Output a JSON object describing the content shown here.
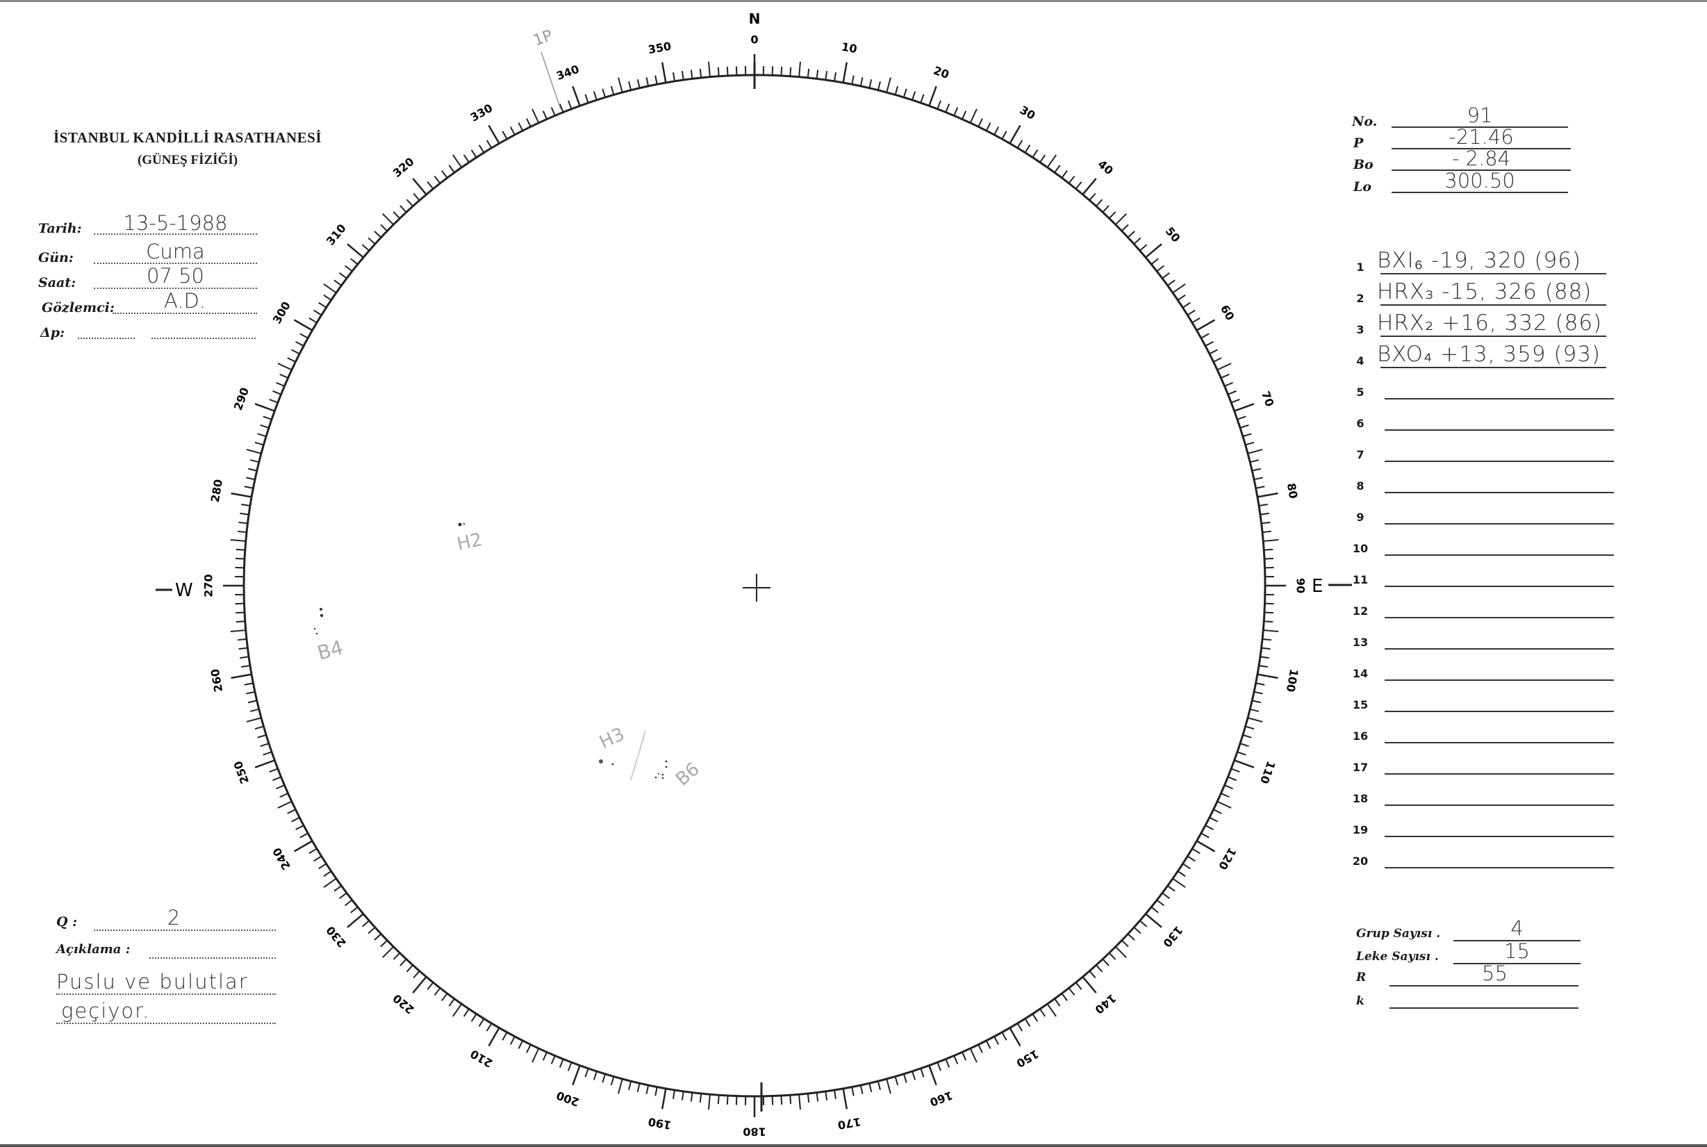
{
  "header": {
    "institution": "İSTANBUL KANDİLLİ RASATHANESİ",
    "department": "(GÜNEŞ FİZİĞİ)"
  },
  "observation": {
    "date_label": "Tarih:",
    "date_value": "13-5-1988",
    "day_label": "Gün:",
    "day_value": "Cuma",
    "time_label": "Saat:",
    "time_value": "07 50",
    "observer_label": "Gözlemci:",
    "observer_value": "A.D.",
    "dp_label": "Δp:",
    "dp_value": ""
  },
  "ephemeris": {
    "no_label": "No.",
    "no_value": "91",
    "p_label": "P",
    "p_value": "-21.46",
    "bo_label": "Bo",
    "bo_value": "- 2.84",
    "lo_label": "Lo",
    "lo_value": "300.50"
  },
  "groups": [
    {
      "n": "1",
      "text": "BXI₆ -19, 320 (96)"
    },
    {
      "n": "2",
      "text": "HRX₃ -15, 326 (88)"
    },
    {
      "n": "3",
      "text": "HRX₂ +16, 332 (86)"
    },
    {
      "n": "4",
      "text": "BXO₄ +13, 359 (93)"
    },
    {
      "n": "5",
      "text": ""
    },
    {
      "n": "6",
      "text": ""
    },
    {
      "n": "7",
      "text": ""
    },
    {
      "n": "8",
      "text": ""
    },
    {
      "n": "9",
      "text": ""
    },
    {
      "n": "10",
      "text": ""
    },
    {
      "n": "11",
      "text": ""
    },
    {
      "n": "12",
      "text": ""
    },
    {
      "n": "13",
      "text": ""
    },
    {
      "n": "14",
      "text": ""
    },
    {
      "n": "15",
      "text": ""
    },
    {
      "n": "16",
      "text": ""
    },
    {
      "n": "17",
      "text": ""
    },
    {
      "n": "18",
      "text": ""
    },
    {
      "n": "19",
      "text": ""
    },
    {
      "n": "20",
      "text": ""
    }
  ],
  "counts": {
    "group_count_label": "Grup Sayısı .",
    "group_count_value": "4",
    "spot_count_label": "Leke Sayısı .",
    "spot_count_value": "15",
    "r_label": "R",
    "r_value": "55",
    "k_label": "k",
    "k_value": ""
  },
  "notes": {
    "q_label": "Q :",
    "q_value": "2",
    "remark_label": "Açıklama :",
    "remark_line1": "Puslu ve bulutlar",
    "remark_line2": "geçiyor."
  },
  "disk": {
    "north_label": "N",
    "east_label": "E",
    "west_label": "W",
    "scale_labels": [
      0,
      10,
      20,
      30,
      40,
      50,
      60,
      70,
      80,
      90,
      100,
      110,
      120,
      130,
      140,
      150,
      160,
      170,
      180,
      190,
      200,
      210,
      220,
      230,
      240,
      250,
      260,
      270,
      280,
      290,
      300,
      310,
      320,
      330,
      340,
      350
    ],
    "pole_mark": "1P",
    "group_annotations": [
      "H2",
      "B4",
      "H3",
      "B6"
    ]
  }
}
